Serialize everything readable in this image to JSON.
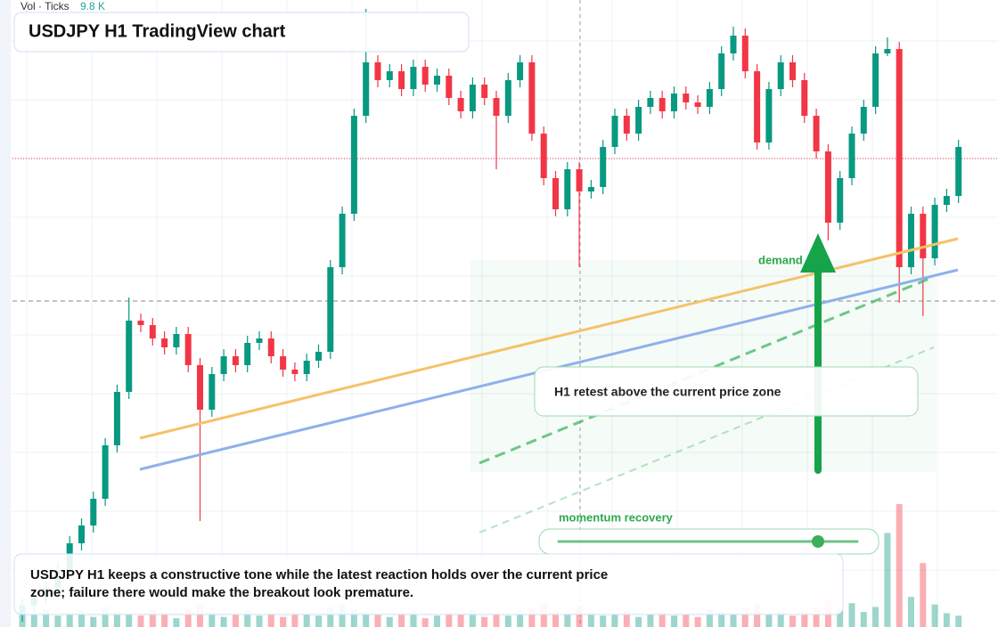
{
  "header": {
    "volume_label": "Vol · Ticks",
    "volume_value": "9.8 K",
    "title": "USDJPY H1 TradingView chart"
  },
  "chart_data": {
    "type": "candlestick",
    "up_color": "#089981",
    "down_color": "#f23645",
    "ylim": [
      150,
      157.04
    ],
    "volume_lim": [
      0,
      50
    ],
    "open": [
      150.14,
      150.24,
      150.34,
      150.44,
      150.64,
      150.94,
      151.14,
      151.44,
      152.04,
      152.64,
      153.44,
      153.39,
      153.24,
      153.14,
      153.29,
      152.94,
      152.44,
      152.84,
      153.04,
      152.94,
      153.19,
      153.24,
      153.04,
      152.89,
      152.84,
      152.99,
      153.09,
      154.04,
      154.64,
      155.74,
      156.34,
      156.14,
      156.24,
      156.04,
      156.29,
      156.09,
      156.19,
      155.94,
      155.79,
      156.09,
      155.94,
      155.74,
      156.14,
      156.34,
      155.54,
      155.04,
      154.69,
      155.14,
      154.89,
      154.94,
      155.39,
      155.74,
      155.54,
      155.84,
      155.94,
      155.79,
      155.99,
      155.89,
      155.84,
      156.04,
      156.44,
      156.64,
      156.24,
      155.44,
      156.04,
      156.34,
      156.14,
      155.74,
      155.34,
      154.54,
      155.04,
      155.54,
      155.84,
      156.44,
      156.49,
      154.04,
      154.64,
      154.14,
      154.74,
      154.84
    ],
    "high": [
      150.32,
      150.42,
      150.52,
      150.72,
      151.02,
      151.22,
      151.52,
      152.12,
      152.72,
      153.7,
      153.52,
      153.47,
      153.32,
      153.37,
      153.37,
      153.02,
      152.92,
      153.12,
      153.12,
      153.27,
      153.32,
      153.32,
      153.12,
      152.97,
      153.07,
      153.17,
      154.12,
      154.72,
      155.82,
      156.94,
      156.42,
      156.32,
      156.32,
      156.37,
      156.37,
      156.27,
      156.27,
      156.02,
      156.17,
      156.17,
      156.02,
      156.22,
      156.42,
      156.42,
      155.62,
      155.12,
      155.22,
      155.22,
      155.02,
      155.47,
      155.82,
      155.82,
      155.92,
      156.02,
      156.02,
      156.07,
      156.07,
      155.97,
      156.12,
      156.52,
      156.74,
      156.72,
      156.32,
      156.12,
      156.42,
      156.42,
      156.22,
      155.82,
      155.42,
      155.12,
      155.62,
      155.92,
      156.52,
      156.62,
      156.57,
      154.72,
      154.72,
      154.82,
      154.92,
      155.47
    ],
    "low": [
      150.06,
      150.16,
      150.26,
      150.36,
      150.56,
      150.86,
      151.06,
      151.36,
      151.96,
      152.56,
      153.31,
      153.16,
      153.06,
      153.06,
      152.86,
      151.19,
      152.36,
      152.76,
      152.86,
      152.86,
      153.11,
      152.96,
      152.81,
      152.76,
      152.76,
      152.91,
      153.01,
      153.96,
      154.56,
      155.66,
      156.06,
      156.06,
      155.96,
      155.96,
      156.01,
      156.01,
      155.86,
      155.71,
      155.71,
      155.86,
      155.14,
      155.66,
      156.06,
      155.46,
      154.96,
      154.61,
      154.61,
      154.04,
      154.81,
      154.86,
      155.31,
      155.46,
      155.46,
      155.76,
      155.71,
      155.71,
      155.81,
      155.76,
      155.76,
      155.96,
      156.36,
      156.16,
      155.36,
      155.36,
      155.96,
      156.06,
      155.66,
      155.26,
      154.34,
      154.46,
      154.96,
      155.46,
      155.76,
      156.41,
      153.64,
      153.96,
      153.49,
      154.06,
      154.66,
      154.76
    ],
    "close": [
      150.24,
      150.34,
      150.44,
      150.64,
      150.94,
      151.14,
      151.44,
      152.04,
      152.64,
      153.44,
      153.39,
      153.24,
      153.14,
      153.29,
      152.94,
      152.44,
      152.84,
      153.04,
      152.94,
      153.19,
      153.24,
      153.04,
      152.89,
      152.84,
      152.99,
      153.09,
      154.04,
      154.64,
      155.74,
      156.34,
      156.14,
      156.24,
      156.04,
      156.29,
      156.09,
      156.19,
      155.94,
      155.79,
      156.09,
      155.94,
      155.74,
      156.14,
      156.34,
      155.54,
      155.04,
      154.69,
      155.14,
      154.89,
      154.94,
      155.39,
      155.74,
      155.54,
      155.84,
      155.94,
      155.79,
      155.99,
      155.89,
      155.84,
      156.04,
      156.44,
      156.64,
      156.24,
      155.44,
      156.04,
      156.34,
      156.14,
      155.74,
      155.34,
      154.54,
      155.04,
      155.54,
      155.84,
      156.44,
      156.49,
      154.04,
      154.64,
      154.14,
      154.74,
      154.84,
      155.39
    ],
    "volume": [
      1.2,
      1.0,
      1.4,
      0.9,
      1.1,
      1.3,
      0.8,
      1.6,
      1.2,
      1.0,
      0.9,
      1.4,
      1.1,
      0.7,
      1.5,
      1.9,
      1.2,
      0.8,
      1.0,
      1.3,
      0.9,
      1.1,
      0.8,
      1.2,
      1.0,
      0.9,
      1.6,
      1.8,
      1.4,
      1.2,
      1.0,
      0.8,
      1.1,
      1.3,
      0.7,
      0.9,
      1.2,
      1.0,
      1.4,
      0.8,
      1.1,
      0.9,
      1.0,
      1.5,
      1.9,
      1.3,
      1.1,
      1.7,
      1.2,
      0.9,
      1.0,
      1.3,
      0.8,
      1.1,
      1.2,
      0.9,
      1.0,
      0.8,
      1.4,
      1.2,
      1.1,
      1.5,
      1.8,
      1.0,
      1.2,
      0.9,
      1.3,
      1.6,
      2.1,
      1.4,
      1.9,
      1.2,
      1.6,
      7.5,
      9.8,
      2.4,
      5.1,
      1.8,
      1.1,
      0.9
    ]
  },
  "annotations": {
    "zone_label": "demand side",
    "retest_label": "H1 retest above the current price zone",
    "momentum_label": "momentum recovery",
    "summary": "USDJPY H1 keeps a constructive tone while the latest reaction holds over the current price zone; failure there would make the breakout look premature."
  }
}
